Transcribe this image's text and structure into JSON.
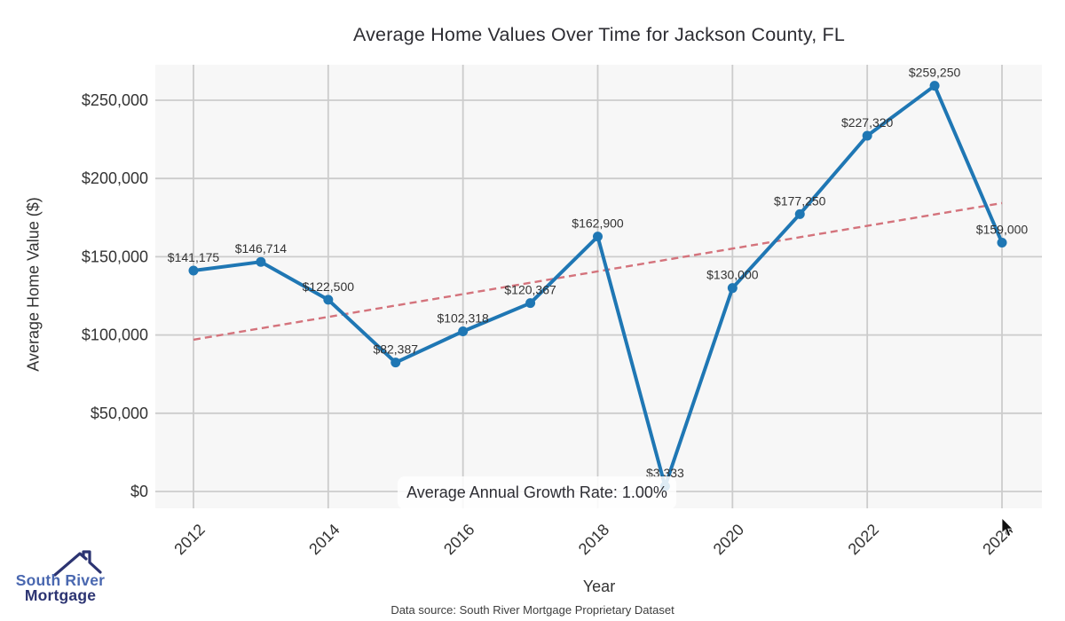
{
  "title": "Average Home Values Over Time for Jackson County, FL",
  "chart_data": {
    "type": "line",
    "x": [
      2012,
      2013,
      2014,
      2015,
      2016,
      2017,
      2018,
      2019,
      2020,
      2021,
      2022,
      2023,
      2024
    ],
    "values": [
      141175,
      146714,
      122500,
      82387,
      102318,
      120367,
      162900,
      3333,
      130000,
      177250,
      227320,
      259250,
      159000
    ],
    "point_labels": [
      "$141,175",
      "$146,714",
      "$122,500",
      "$82,387",
      "$102,318",
      "$120,367",
      "$162,900",
      "$3,333",
      "$130,000",
      "$177,250",
      "$227,320",
      "$259,250",
      "$159,000"
    ],
    "xlabel": "Year",
    "ylabel": "Average Home Value ($)",
    "xticks": [
      2012,
      2014,
      2016,
      2018,
      2020,
      2022,
      2024
    ],
    "yticks": [
      0,
      50000,
      100000,
      150000,
      200000,
      250000
    ],
    "ytick_labels": [
      "$0",
      "$50,000",
      "$100,000",
      "$150,000",
      "$200,000",
      "$250,000"
    ],
    "grid": true,
    "legend": "none",
    "annotation": "Average Annual Growth Rate: 1.00%",
    "trend_line": {
      "style": "dashed",
      "start_x": 2012,
      "start_value": 97000,
      "end_x": 2024,
      "end_value": 184300
    },
    "colors": {
      "line": "#1f77b4",
      "marker": "#1f77b4",
      "trend": "#d4737c",
      "plot_background": "#f7f7f7",
      "grid": "#cccccc",
      "tick_text": "#333333",
      "label_text": "#333333"
    }
  },
  "footer": {
    "source": "Data source: South River Mortgage Proprietary Dataset"
  },
  "logo": {
    "line1": "South River",
    "line2": "Mortgage",
    "color1": "#4a68b0",
    "color2": "#2c3472"
  }
}
